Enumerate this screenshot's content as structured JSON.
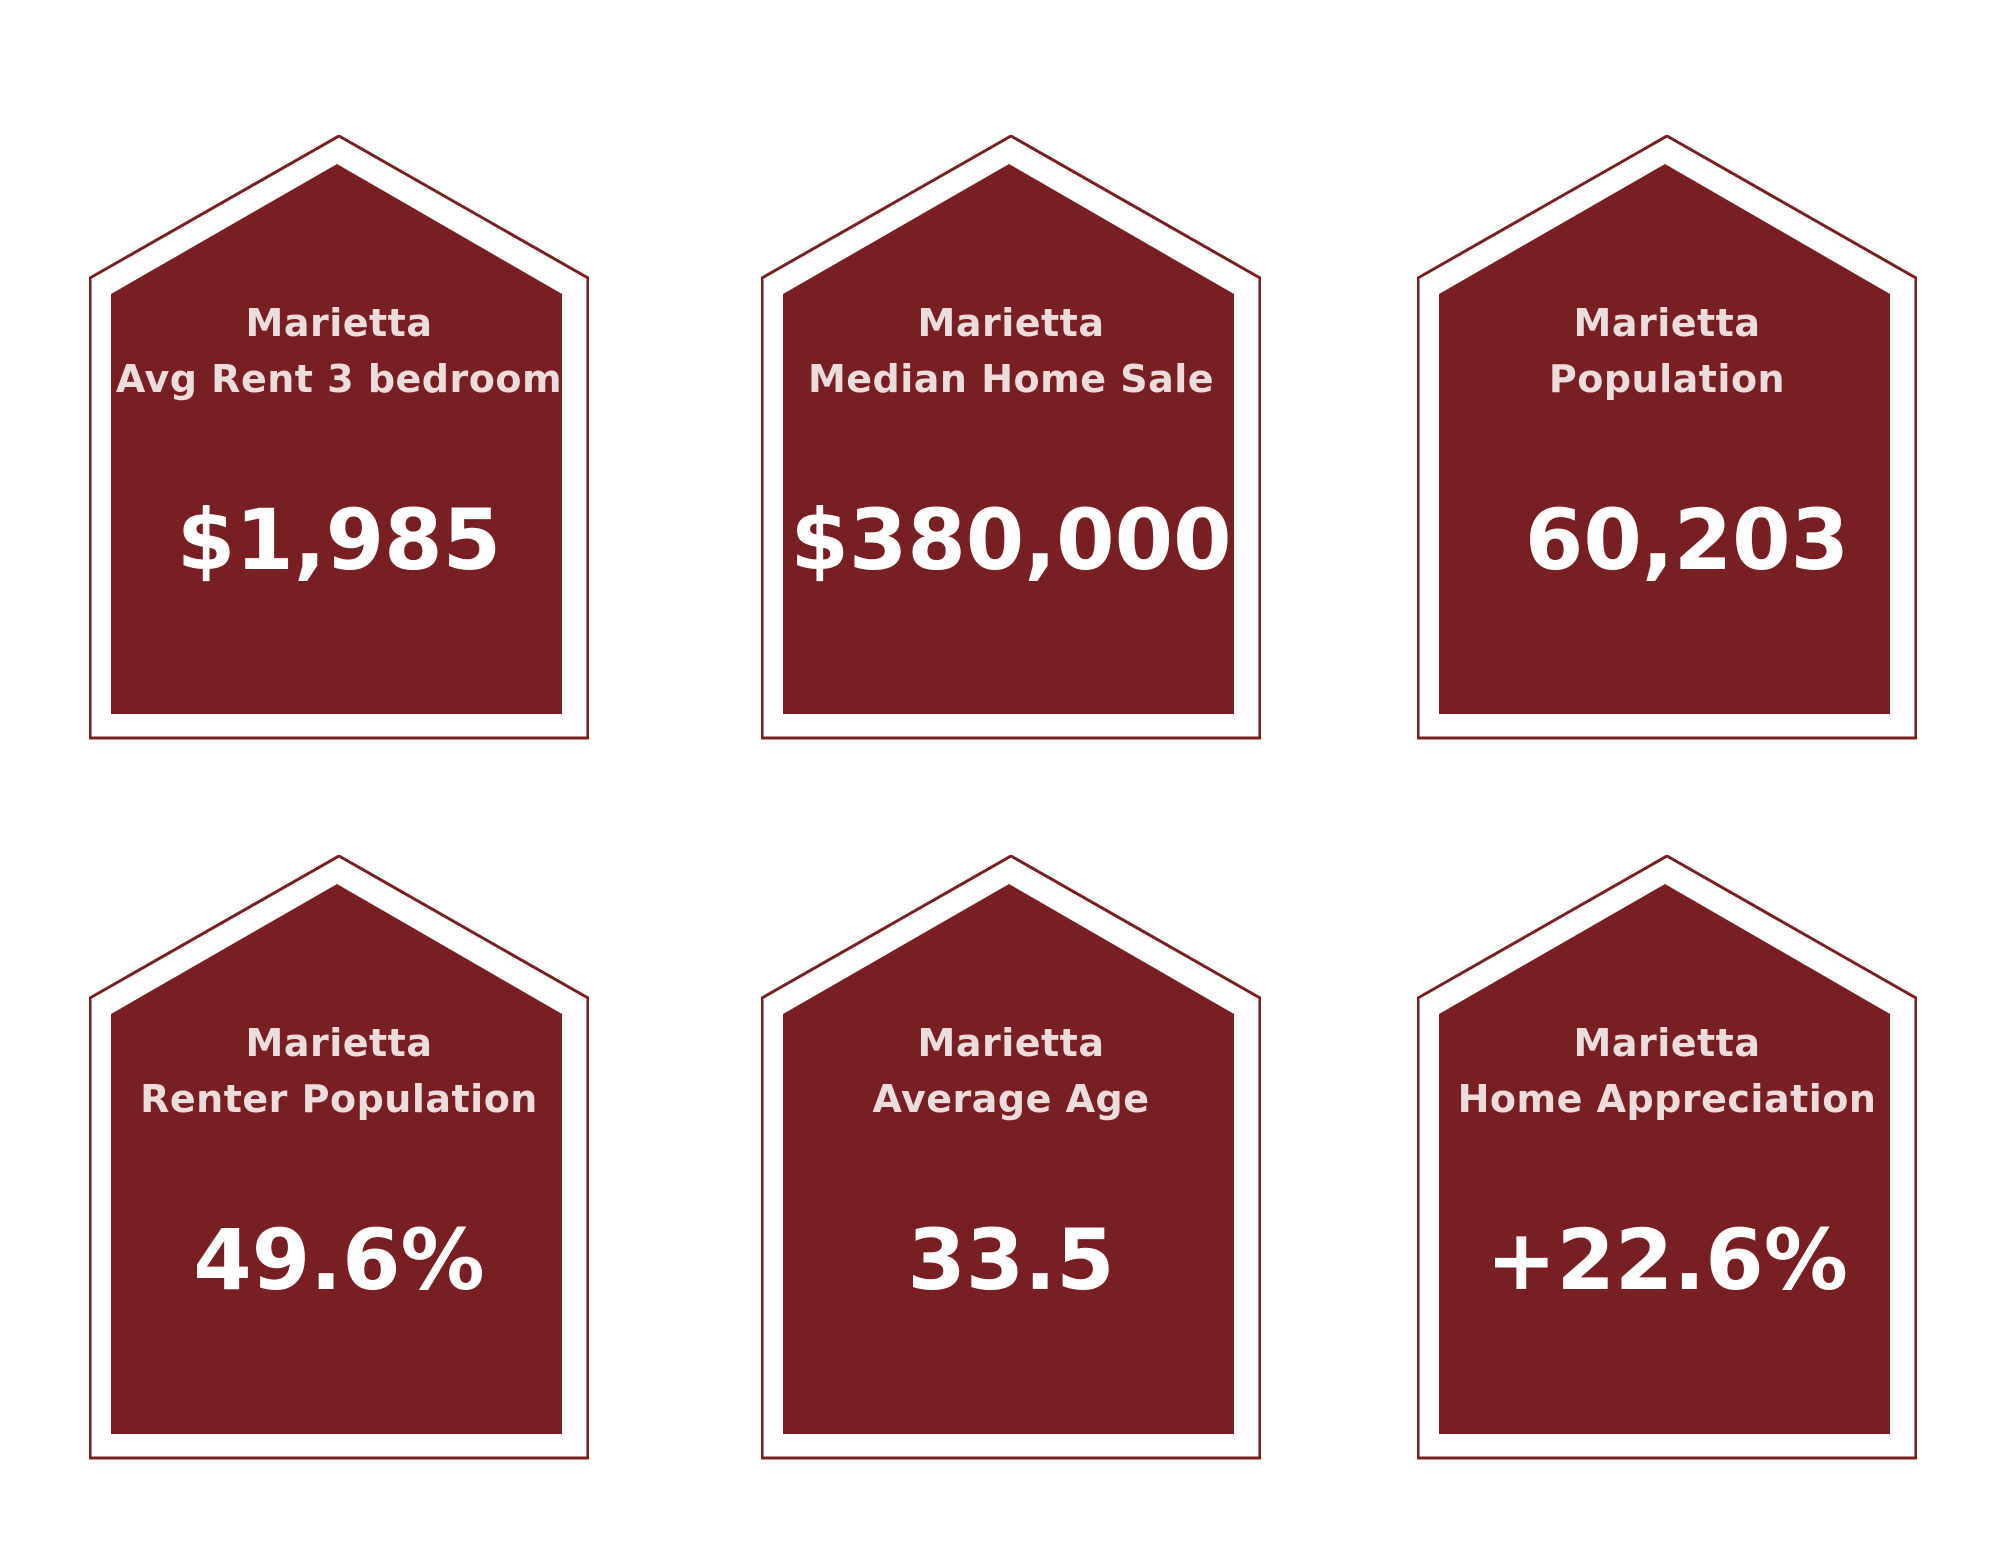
{
  "colors": {
    "house_fill": "#781f24",
    "house_outline": "#781f24",
    "label_text": "#ecdcdc",
    "value_text": "#ffffff"
  },
  "cards": [
    {
      "city": "Marietta",
      "metric": "Avg Rent 3 bedroom",
      "value": "$1,985"
    },
    {
      "city": "Marietta",
      "metric": "Median Home Sale",
      "value": "$380,000"
    },
    {
      "city": "Marietta",
      "metric": "Population",
      "value": "60,203"
    },
    {
      "city": "Marietta",
      "metric": "Renter Population",
      "value": "49.6%"
    },
    {
      "city": "Marietta",
      "metric": "Average Age",
      "value": "33.5"
    },
    {
      "city": "Marietta",
      "metric": "Home Appreciation",
      "value": "+22.6%"
    }
  ]
}
